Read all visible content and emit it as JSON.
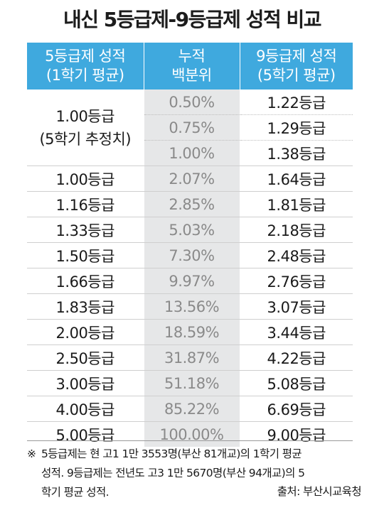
{
  "title": "내신 5등급제-9등급제 성적 비교",
  "table": {
    "headers": [
      {
        "line1": "5등급제 성적",
        "line2": "(1학기 평균)"
      },
      {
        "line1": "누적",
        "line2": "백분위"
      },
      {
        "line1": "9등급제 성적",
        "line2": "(5학기 평균)"
      }
    ],
    "estimate_group": {
      "grade5_line1": "1.00등급",
      "grade5_line2": "(5학기 추정치)",
      "rows": [
        {
          "percentile": "0.50%",
          "grade9": "1.22등급"
        },
        {
          "percentile": "0.75%",
          "grade9": "1.29등급"
        },
        {
          "percentile": "1.00%",
          "grade9": "1.38등급"
        }
      ]
    },
    "rows": [
      {
        "grade5": "1.00등급",
        "percentile": "2.07%",
        "grade9": "1.64등급"
      },
      {
        "grade5": "1.16등급",
        "percentile": "2.85%",
        "grade9": "1.81등급"
      },
      {
        "grade5": "1.33등급",
        "percentile": "5.03%",
        "grade9": "2.18등급"
      },
      {
        "grade5": "1.50등급",
        "percentile": "7.30%",
        "grade9": "2.48등급"
      },
      {
        "grade5": "1.66등급",
        "percentile": "9.97%",
        "grade9": "2.76등급"
      },
      {
        "grade5": "1.83등급",
        "percentile": "13.56%",
        "grade9": "3.07등급"
      },
      {
        "grade5": "2.00등급",
        "percentile": "18.59%",
        "grade9": "3.44등급"
      },
      {
        "grade5": "2.50등급",
        "percentile": "31.87%",
        "grade9": "4.22등급"
      },
      {
        "grade5": "3.00등급",
        "percentile": "51.18%",
        "grade9": "5.08등급"
      },
      {
        "grade5": "4.00등급",
        "percentile": "85.22%",
        "grade9": "6.69등급"
      },
      {
        "grade5": "5.00등급",
        "percentile": "100.00%",
        "grade9": "9.00등급"
      }
    ]
  },
  "note": {
    "mark": "※",
    "line1": "5등급제는 현 고1 1만 3553명(부산 81개교)의 1학기 평균",
    "line2": "성적. 9등급제는 전년도 고3 1만 5670명(부산 94개교)의 5",
    "line3": "학기 평균 성적."
  },
  "source": "출처: 부산시교육청",
  "colors": {
    "header_bg": "#3fa9de",
    "percentile_bg": "#e6e7e8",
    "percentile_text": "#8a8a8a"
  }
}
